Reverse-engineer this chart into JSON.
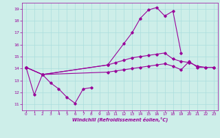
{
  "xlabel": "Windchill (Refroidissement éolien,°C)",
  "background_color": "#cdeee9",
  "line_color": "#990099",
  "xlim": [
    -0.5,
    23.5
  ],
  "ylim": [
    10.5,
    19.5
  ],
  "xticks": [
    0,
    1,
    2,
    3,
    4,
    5,
    6,
    7,
    8,
    9,
    10,
    11,
    12,
    13,
    14,
    15,
    16,
    17,
    18,
    19,
    20,
    21,
    22,
    23
  ],
  "yticks": [
    11,
    12,
    13,
    14,
    15,
    16,
    17,
    18,
    19
  ],
  "grid_color": "#aadddd",
  "lines": [
    {
      "points": [
        [
          0,
          14.1
        ],
        [
          1,
          11.8
        ],
        [
          2,
          13.5
        ],
        [
          3,
          12.8
        ],
        [
          4,
          12.3
        ],
        [
          5,
          11.6
        ],
        [
          6,
          11.1
        ],
        [
          7,
          12.3
        ],
        [
          8,
          12.4
        ]
      ],
      "connected": true
    },
    {
      "points": [
        [
          0,
          14.1
        ],
        [
          2,
          13.5
        ],
        [
          10,
          14.3
        ],
        [
          12,
          16.1
        ],
        [
          13,
          17.0
        ],
        [
          14,
          18.2
        ],
        [
          15,
          18.9
        ],
        [
          16,
          19.1
        ],
        [
          17,
          18.4
        ],
        [
          18,
          18.8
        ],
        [
          19,
          15.3
        ]
      ],
      "connected": true
    },
    {
      "points": [
        [
          0,
          14.1
        ],
        [
          2,
          13.5
        ],
        [
          10,
          14.3
        ],
        [
          11,
          14.5
        ],
        [
          12,
          14.7
        ],
        [
          13,
          14.9
        ],
        [
          14,
          15.0
        ],
        [
          15,
          15.1
        ],
        [
          16,
          15.2
        ],
        [
          17,
          15.3
        ],
        [
          18,
          14.8
        ],
        [
          19,
          14.6
        ],
        [
          20,
          14.5
        ],
        [
          21,
          14.2
        ],
        [
          22,
          14.1
        ],
        [
          23,
          14.1
        ]
      ],
      "connected": true
    },
    {
      "points": [
        [
          0,
          14.1
        ],
        [
          2,
          13.5
        ],
        [
          10,
          13.7
        ],
        [
          11,
          13.8
        ],
        [
          12,
          13.9
        ],
        [
          13,
          14.0
        ],
        [
          14,
          14.1
        ],
        [
          15,
          14.2
        ],
        [
          16,
          14.3
        ],
        [
          17,
          14.4
        ],
        [
          18,
          14.2
        ],
        [
          19,
          13.9
        ],
        [
          20,
          14.6
        ],
        [
          21,
          14.1
        ],
        [
          22,
          14.1
        ],
        [
          23,
          14.1
        ]
      ],
      "connected": true
    }
  ]
}
